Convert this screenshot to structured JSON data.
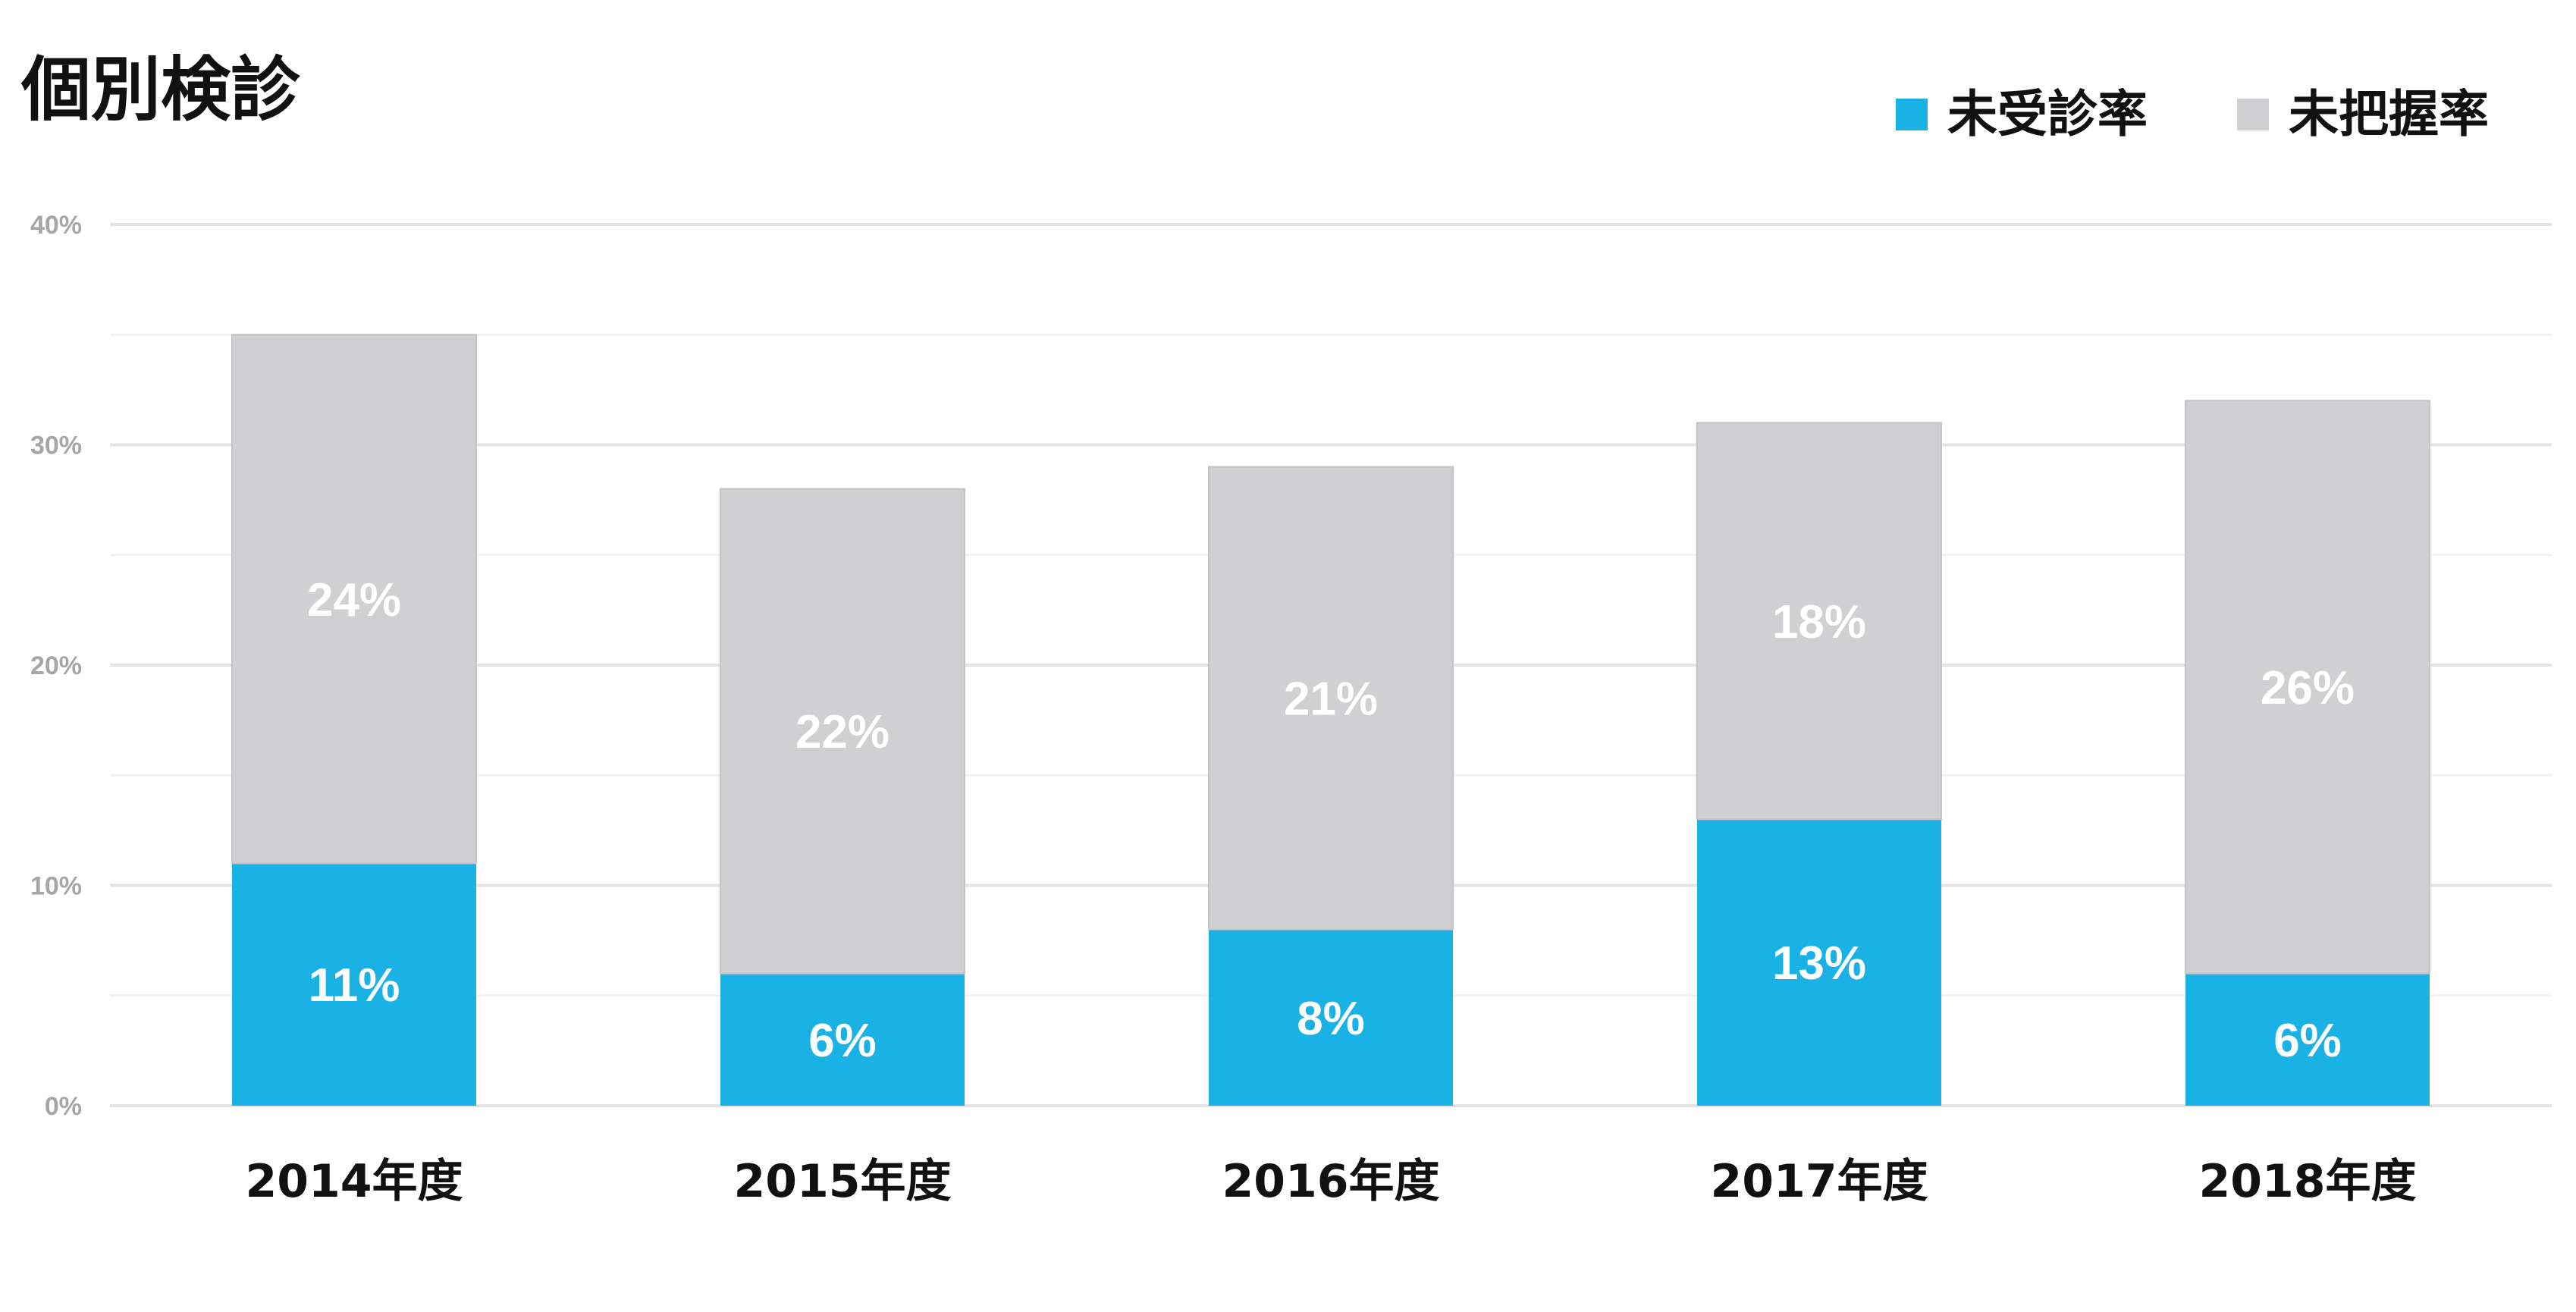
{
  "chart_data": {
    "type": "bar",
    "stacked": true,
    "title": "個別検診",
    "categories": [
      "2014年度",
      "2015年度",
      "2016年度",
      "2017年度",
      "2018年度"
    ],
    "series": [
      {
        "name": "未受診率",
        "values": [
          11,
          6,
          8,
          13,
          6
        ],
        "labels": [
          "11%",
          "6%",
          "8%",
          "13%",
          "6%"
        ],
        "color": "#1ab2e5"
      },
      {
        "name": "未把握率",
        "values": [
          24,
          22,
          21,
          18,
          26
        ],
        "labels": [
          "24%",
          "22%",
          "21%",
          "18%",
          "26%"
        ],
        "color": "#d0cfd1"
      }
    ],
    "ylim": [
      0,
      40
    ],
    "yticks": [
      0,
      10,
      20,
      30,
      40
    ],
    "ytick_labels": [
      "0%",
      "10%",
      "20%",
      "30%",
      "40%"
    ],
    "grid": true,
    "legend_position": "top-right",
    "xlabel": "",
    "ylabel": ""
  }
}
